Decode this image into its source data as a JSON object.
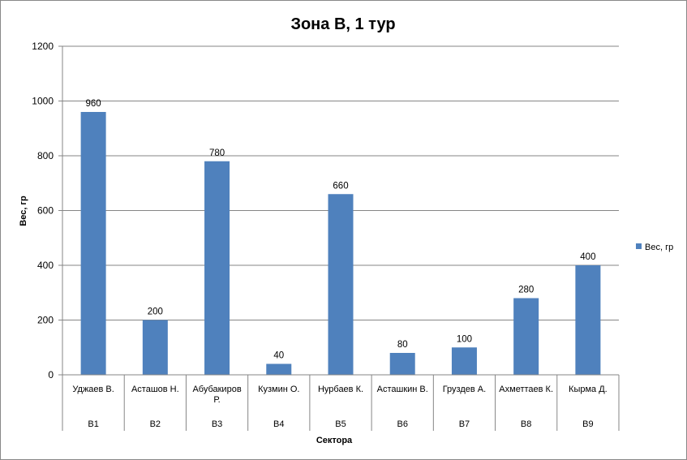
{
  "chart_data": {
    "type": "bar",
    "title": "Зона В, 1 тур",
    "xlabel": "Сектора",
    "ylabel": "Вес, гр",
    "ylim": [
      0,
      1200
    ],
    "yticks": [
      0,
      200,
      400,
      600,
      800,
      1000,
      1200
    ],
    "grid": true,
    "legend_position": "right",
    "color": "#4F81BD",
    "categories": [
      {
        "name": [
          "Уджаев В."
        ],
        "sector": "В1"
      },
      {
        "name": [
          "Асташов Н."
        ],
        "sector": "В2"
      },
      {
        "name": [
          "Абубакиров",
          "Р."
        ],
        "sector": "В3"
      },
      {
        "name": [
          "Кузмин О."
        ],
        "sector": "В4"
      },
      {
        "name": [
          "Нурбаев К."
        ],
        "sector": "В5"
      },
      {
        "name": [
          "Асташкин В."
        ],
        "sector": "В6"
      },
      {
        "name": [
          "Груздев А."
        ],
        "sector": "В7"
      },
      {
        "name": [
          "Ахметтаев К."
        ],
        "sector": "В8"
      },
      {
        "name": [
          "Кырма Д."
        ],
        "sector": "В9"
      }
    ],
    "series": [
      {
        "name": "Вес, гр",
        "values": [
          960,
          200,
          780,
          40,
          660,
          80,
          100,
          280,
          400
        ]
      }
    ]
  }
}
